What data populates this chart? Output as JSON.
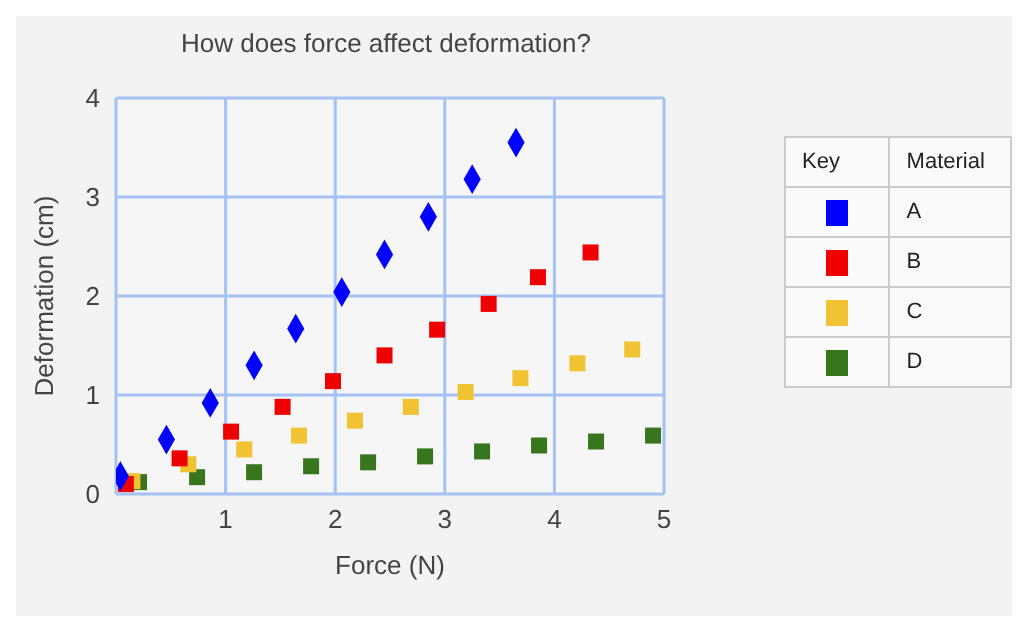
{
  "chart_data": {
    "type": "scatter",
    "title": "How does force affect deformation?",
    "xlabel": "Force (N)",
    "ylabel": "Deformation (cm)",
    "legend_title": "Material",
    "annotations": [
      "Key"
    ],
    "xlim": [
      0,
      5
    ],
    "xticks": [
      {
        "value": 0,
        "label": null
      },
      1,
      2,
      3,
      4,
      5
    ],
    "ylim": [
      0,
      4
    ],
    "yticks": [
      0,
      1,
      2,
      3,
      4
    ],
    "grid": true,
    "legend": "right",
    "series": [
      {
        "name": "A",
        "color": "#0000ff",
        "marker": "diamond",
        "x": [
          0.04,
          0.46,
          0.86,
          1.26,
          1.64,
          2.06,
          2.45,
          2.85,
          3.25,
          3.65
        ],
        "values": [
          0.18,
          0.55,
          0.92,
          1.3,
          1.67,
          2.04,
          2.42,
          2.8,
          3.18,
          3.55
        ]
      },
      {
        "name": "B",
        "color": "#ee0000",
        "marker": "square",
        "x": [
          0.09,
          0.58,
          1.05,
          1.52,
          1.98,
          2.45,
          2.93,
          3.4,
          3.85,
          4.33
        ],
        "values": [
          0.1,
          0.36,
          0.63,
          0.88,
          1.14,
          1.4,
          1.66,
          1.92,
          2.19,
          2.44
        ]
      },
      {
        "name": "C",
        "color": "#f1c232",
        "marker": "square",
        "x": [
          0.15,
          0.66,
          1.17,
          1.67,
          2.18,
          2.69,
          3.19,
          3.69,
          4.21,
          4.71
        ],
        "values": [
          0.13,
          0.3,
          0.45,
          0.59,
          0.74,
          0.88,
          1.03,
          1.17,
          1.32,
          1.46
        ]
      },
      {
        "name": "D",
        "color": "#38761d",
        "marker": "square",
        "x": [
          0.21,
          0.74,
          1.26,
          1.78,
          2.3,
          2.82,
          3.34,
          3.86,
          4.38,
          4.9
        ],
        "values": [
          0.12,
          0.17,
          0.22,
          0.28,
          0.32,
          0.38,
          0.43,
          0.49,
          0.53,
          0.59
        ]
      }
    ]
  }
}
